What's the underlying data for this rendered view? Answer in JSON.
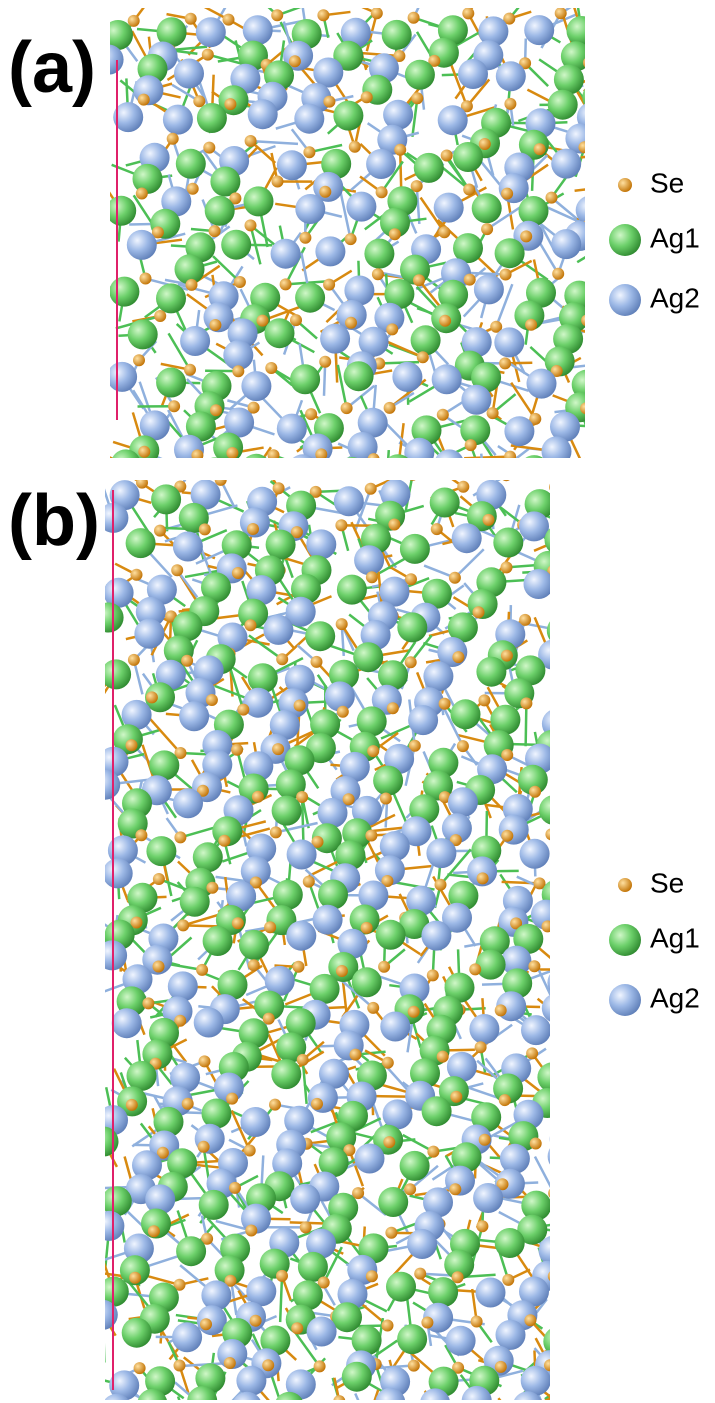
{
  "panels": [
    {
      "label": "(a)",
      "legend": [
        {
          "label": "Se"
        },
        {
          "label": "Ag1"
        },
        {
          "label": "Ag2"
        }
      ]
    },
    {
      "label": "(b)",
      "legend": [
        {
          "label": "Se"
        },
        {
          "label": "Ag1"
        },
        {
          "label": "Ag2"
        }
      ]
    }
  ]
}
